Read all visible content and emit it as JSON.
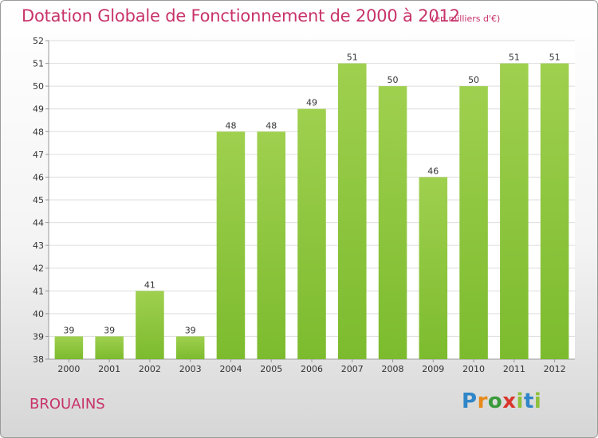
{
  "chart_data": {
    "type": "bar",
    "title": "Dotation Globale de Fonctionnement de 2000 à 2012",
    "unit_note": "(en milliers d'€)",
    "categories": [
      "2000",
      "2001",
      "2002",
      "2003",
      "2004",
      "2005",
      "2006",
      "2007",
      "2008",
      "2009",
      "2010",
      "2011",
      "2012"
    ],
    "values": [
      39,
      39,
      41,
      39,
      48,
      48,
      49,
      51,
      50,
      46,
      50,
      51,
      51
    ],
    "ylim": [
      38,
      52
    ],
    "yticks": [
      38,
      39,
      40,
      41,
      42,
      43,
      44,
      45,
      46,
      47,
      48,
      49,
      50,
      51,
      52
    ],
    "grid": true,
    "bar_color": "#7cbb2e",
    "bar_color_light": "#9fd04f"
  },
  "commune": "BROUAINS",
  "logo": {
    "text": "Proxiti",
    "parts": [
      "P",
      "r",
      "o",
      "x",
      "i",
      "t",
      "i"
    ]
  }
}
